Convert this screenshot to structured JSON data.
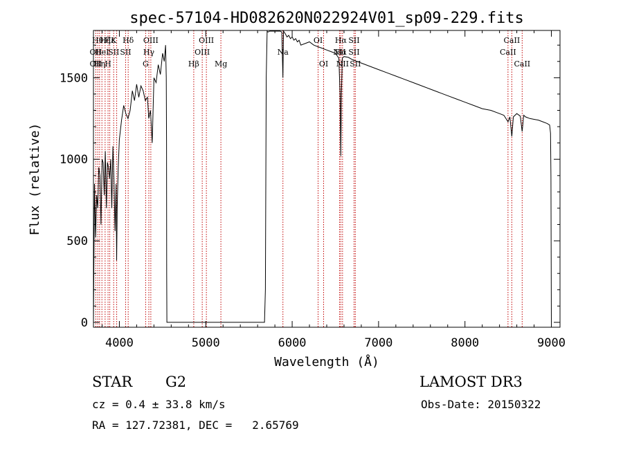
{
  "chart_data": {
    "type": "line",
    "title": "spec-57104-HD082620N022924V01_sp09-229.fits",
    "xlabel": "Wavelength (Å)",
    "ylabel": "Flux (relative)",
    "xlim": [
      3700,
      9100
    ],
    "ylim": [
      -30,
      1790
    ],
    "xticks": [
      4000,
      5000,
      6000,
      7000,
      8000,
      9000
    ],
    "yticks": [
      0,
      500,
      1000,
      1500
    ],
    "grid": false,
    "series": [
      {
        "x": [
          3700,
          3712,
          3725,
          3737,
          3750,
          3762,
          3775,
          3787,
          3800,
          3812,
          3825,
          3837,
          3850,
          3862,
          3875,
          3887,
          3900,
          3912,
          3925,
          3937,
          3950,
          3962,
          3968,
          3975,
          3987,
          4000,
          4025,
          4050,
          4075,
          4100,
          4125,
          4150,
          4175,
          4200,
          4225,
          4250,
          4275,
          4300,
          4325,
          4340,
          4360,
          4380,
          4400,
          4425,
          4450,
          4475,
          4500,
          4520,
          4535,
          4543,
          4546,
          4548,
          4550,
          4560,
          5600,
          5680,
          5690,
          5700,
          5710,
          5720,
          5740,
          5760,
          5780,
          5800,
          5820,
          5840,
          5860,
          5880,
          5893,
          5900,
          5920,
          5940,
          5960,
          5980,
          6000,
          6020,
          6040,
          6060,
          6080,
          6100,
          6150,
          6200,
          6250,
          6300,
          6350,
          6400,
          6450,
          6500,
          6540,
          6555,
          6563,
          6570,
          6580,
          6600,
          6650,
          6700,
          6750,
          6800,
          6900,
          7000,
          7100,
          7200,
          7300,
          7400,
          7500,
          7600,
          7700,
          7800,
          7900,
          8000,
          8100,
          8200,
          8300,
          8400,
          8450,
          8498,
          8520,
          8542,
          8560,
          8600,
          8640,
          8662,
          8680,
          8700,
          8750,
          8800,
          8850,
          8900,
          8950,
          8980,
          8990,
          8995,
          9000
        ],
        "y": [
          0,
          850,
          520,
          780,
          700,
          950,
          900,
          600,
          1000,
          980,
          780,
          1050,
          700,
          980,
          950,
          880,
          1000,
          700,
          1080,
          880,
          560,
          850,
          380,
          700,
          950,
          1120,
          1240,
          1330,
          1280,
          1250,
          1300,
          1420,
          1360,
          1460,
          1380,
          1450,
          1420,
          1360,
          1380,
          1250,
          1300,
          1100,
          1500,
          1470,
          1580,
          1520,
          1650,
          1600,
          1700,
          1500,
          1100,
          300,
          0,
          0,
          0,
          0,
          200,
          1500,
          1800,
          1780,
          1820,
          1800,
          1790,
          1810,
          1800,
          1790,
          1800,
          1780,
          1500,
          1790,
          1770,
          1750,
          1760,
          1740,
          1750,
          1730,
          1740,
          1720,
          1730,
          1700,
          1710,
          1720,
          1700,
          1690,
          1680,
          1670,
          1660,
          1650,
          1620,
          1400,
          1020,
          1400,
          1620,
          1630,
          1625,
          1610,
          1600,
          1590,
          1570,
          1550,
          1530,
          1510,
          1490,
          1470,
          1450,
          1430,
          1410,
          1390,
          1370,
          1350,
          1330,
          1310,
          1300,
          1280,
          1270,
          1230,
          1260,
          1140,
          1260,
          1280,
          1265,
          1170,
          1270,
          1260,
          1250,
          1245,
          1240,
          1230,
          1220,
          1210,
          1160,
          900,
          0
        ]
      }
    ],
    "lines": [
      {
        "x": 3727,
        "labels": [
          {
            "row": 2,
            "text": "OII"
          },
          {
            "row": 3,
            "text": "OII"
          }
        ]
      },
      {
        "x": 3750,
        "labels": [
          {
            "row": 1,
            "text": "Hθ"
          }
        ]
      },
      {
        "x": 3771,
        "labels": [
          {
            "row": 3,
            "text": "Hη"
          }
        ]
      },
      {
        "x": 3798,
        "labels": [
          {
            "row": 2,
            "text": "HeI"
          }
        ]
      },
      {
        "x": 3835,
        "labels": [
          {
            "row": 1,
            "text": "Hζ"
          }
        ]
      },
      {
        "x": 3869,
        "labels": [
          {
            "row": 3,
            "text": "H"
          }
        ]
      },
      {
        "x": 3889,
        "labels": [
          {
            "row": 1,
            "text": "Hε"
          }
        ]
      },
      {
        "x": 3934,
        "labels": [
          {
            "row": 1,
            "text": "K"
          },
          {
            "row": 2,
            "text": "SII"
          }
        ]
      },
      {
        "x": 3969,
        "labels": []
      },
      {
        "x": 4072,
        "labels": [
          {
            "row": 2,
            "text": "SII"
          }
        ]
      },
      {
        "x": 4102,
        "labels": [
          {
            "row": 1,
            "text": "Hδ"
          }
        ]
      },
      {
        "x": 4304,
        "labels": [
          {
            "row": 3,
            "text": "G"
          }
        ]
      },
      {
        "x": 4341,
        "labels": [
          {
            "row": 2,
            "text": "Hγ"
          }
        ]
      },
      {
        "x": 4364,
        "labels": [
          {
            "row": 1,
            "text": "OIII"
          }
        ]
      },
      {
        "x": 4861,
        "labels": [
          {
            "row": 3,
            "text": "Hβ"
          }
        ]
      },
      {
        "x": 4959,
        "labels": [
          {
            "row": 2,
            "text": "OIII"
          }
        ]
      },
      {
        "x": 5007,
        "labels": [
          {
            "row": 1,
            "text": "OIII"
          }
        ]
      },
      {
        "x": 5175,
        "labels": [
          {
            "row": 3,
            "text": "Mg"
          }
        ]
      },
      {
        "x": 5893,
        "labels": [
          {
            "row": 2,
            "text": "Na"
          }
        ]
      },
      {
        "x": 6300,
        "labels": [
          {
            "row": 1,
            "text": "OI"
          }
        ]
      },
      {
        "x": 6364,
        "labels": [
          {
            "row": 3,
            "text": "OI"
          }
        ]
      },
      {
        "x": 6548,
        "labels": [
          {
            "row": 2,
            "text": "NII"
          }
        ]
      },
      {
        "x": 6563,
        "labels": [
          {
            "row": 1,
            "text": "Hα"
          },
          {
            "row": 2,
            "text": "Hα"
          }
        ]
      },
      {
        "x": 6583,
        "labels": [
          {
            "row": 3,
            "text": "NII"
          }
        ]
      },
      {
        "x": 6716,
        "labels": [
          {
            "row": 1,
            "text": "SII"
          },
          {
            "row": 2,
            "text": "SII"
          }
        ]
      },
      {
        "x": 6731,
        "labels": [
          {
            "row": 3,
            "text": "SII"
          }
        ]
      },
      {
        "x": 8498,
        "labels": [
          {
            "row": 2,
            "text": "CaII"
          }
        ]
      },
      {
        "x": 8542,
        "labels": [
          {
            "row": 1,
            "text": "CaII"
          }
        ]
      },
      {
        "x": 8662,
        "labels": [
          {
            "row": 3,
            "text": "CaII"
          }
        ]
      }
    ],
    "line_color": "#c00000",
    "spectrum_color": "#000000"
  },
  "info": {
    "object_class": "STAR",
    "subclass": "G2",
    "survey": "LAMOST DR3",
    "cz": "cz = 0.4 ± 33.8 km/s",
    "obs_date": "Obs-Date: 20150322",
    "coords": "RA = 127.72381, DEC =   2.65769"
  }
}
